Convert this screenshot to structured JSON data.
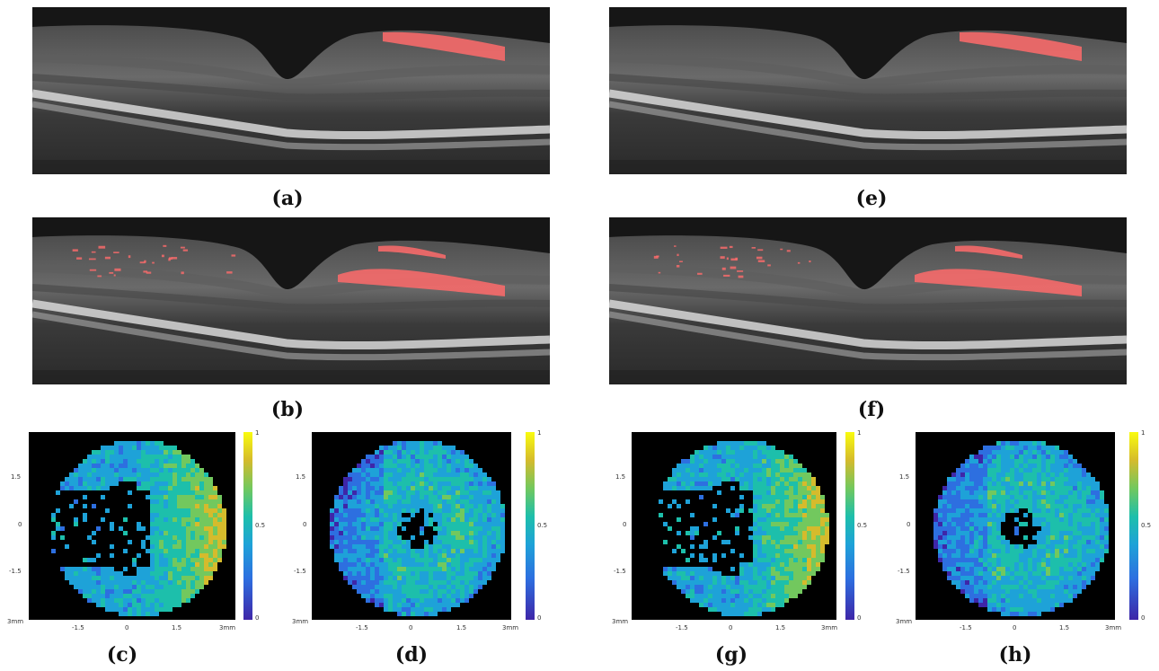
{
  "panels": {
    "a": {
      "label": "(a)"
    },
    "b": {
      "label": "(b)"
    },
    "c": {
      "label": "(c)"
    },
    "d": {
      "label": "(d)"
    },
    "e": {
      "label": "(e)"
    },
    "f": {
      "label": "(f)"
    },
    "g": {
      "label": "(g)"
    },
    "h": {
      "label": "(h)"
    }
  },
  "axes": {
    "x_ticks": [
      "3mm",
      "-1.5",
      "0",
      "1.5",
      "3mm"
    ],
    "y_ticks": [
      "1.5",
      "0",
      "-1.5"
    ],
    "colorbar_ticks": [
      "1",
      "0.5",
      "0"
    ]
  },
  "colors": {
    "overlay": "#ff6b6b",
    "colormap": [
      "#3e26a8",
      "#2d6fe0",
      "#1ea2d8",
      "#1dbfab",
      "#72c85e",
      "#d5bb2c",
      "#f9fb0e"
    ]
  }
}
